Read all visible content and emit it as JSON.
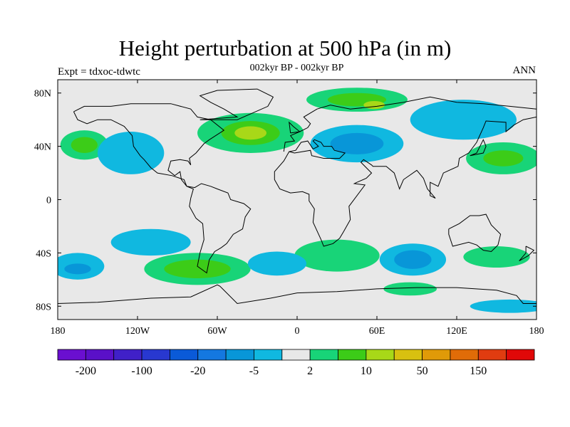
{
  "chart_data": {
    "type": "heatmap",
    "subtype": "filled-contour-map",
    "title": "Height perturbation at 500 hPa (in m)",
    "subtitle": "002kyr BP - 002kyr BP",
    "left_label": "Expt = tdxoc-tdwtc",
    "right_label": "ANN",
    "xlim": [
      -180,
      180
    ],
    "ylim": [
      -90,
      90
    ],
    "x_ticks": [
      {
        "value": -180,
        "label": "180"
      },
      {
        "value": -120,
        "label": "120W"
      },
      {
        "value": -60,
        "label": "60W"
      },
      {
        "value": 0,
        "label": "0"
      },
      {
        "value": 60,
        "label": "60E"
      },
      {
        "value": 120,
        "label": "120E"
      },
      {
        "value": 180,
        "label": "180"
      }
    ],
    "y_ticks": [
      {
        "value": 80,
        "label": "80N"
      },
      {
        "value": 40,
        "label": "40N"
      },
      {
        "value": 0,
        "label": "0"
      },
      {
        "value": -40,
        "label": "40S"
      },
      {
        "value": -80,
        "label": "80S"
      }
    ],
    "colorbar": {
      "colors": [
        "#6a0fd0",
        "#5a10c8",
        "#4020c8",
        "#2838d0",
        "#0a5ad8",
        "#1478e0",
        "#0896d8",
        "#10b8e0",
        "#e8e8e8",
        "#18d478",
        "#3ccc18",
        "#a8d818",
        "#d8c010",
        "#e09a08",
        "#e06c08",
        "#e03c10",
        "#e00808"
      ],
      "tick_labels": [
        "-200",
        "-100",
        "-20",
        "-5",
        "2",
        "10",
        "50",
        "150"
      ],
      "tick_boundaries": [
        1,
        3,
        5,
        7,
        9,
        11,
        13,
        15
      ]
    },
    "anomalies": [
      {
        "lon": 45,
        "lat": 75,
        "level": "5 to 10",
        "rx": 38,
        "ry": 9
      },
      {
        "lon": 45,
        "lat": 75,
        "level": "10 to 20",
        "rx": 22,
        "ry": 5
      },
      {
        "lon": 58,
        "lat": 71,
        "level": "20 to 50",
        "rx": 8,
        "ry": 3
      },
      {
        "lon": -35,
        "lat": 50,
        "level": "5 to 10",
        "rx": 40,
        "ry": 15
      },
      {
        "lon": -35,
        "lat": 50,
        "level": "10 to 20",
        "rx": 22,
        "ry": 9
      },
      {
        "lon": -35,
        "lat": 50,
        "level": "20 to 50",
        "rx": 12,
        "ry": 5
      },
      {
        "lon": -160,
        "lat": 41,
        "level": "5 to 10",
        "rx": 18,
        "ry": 11
      },
      {
        "lon": -160,
        "lat": 41,
        "level": "10 to 20",
        "rx": 10,
        "ry": 6
      },
      {
        "lon": 155,
        "lat": 31,
        "level": "5 to 10",
        "rx": 28,
        "ry": 12
      },
      {
        "lon": 155,
        "lat": 31,
        "level": "10 to 20",
        "rx": 15,
        "ry": 6
      },
      {
        "lon": -75,
        "lat": -52,
        "level": "5 to 10",
        "rx": 40,
        "ry": 12
      },
      {
        "lon": -75,
        "lat": -52,
        "level": "10 to 20",
        "rx": 25,
        "ry": 7
      },
      {
        "lon": 30,
        "lat": -42,
        "level": "5 to 10",
        "rx": 32,
        "ry": 12
      },
      {
        "lon": 150,
        "lat": -43,
        "level": "5 to 10",
        "rx": 25,
        "ry": 8
      },
      {
        "lon": 85,
        "lat": -67,
        "level": "5 to 10",
        "rx": 20,
        "ry": 5
      },
      {
        "lon": 45,
        "lat": 42,
        "level": "-10 to -5",
        "rx": 35,
        "ry": 14
      },
      {
        "lon": 45,
        "lat": 42,
        "level": "-20 to -10",
        "rx": 20,
        "ry": 8
      },
      {
        "lon": -125,
        "lat": 35,
        "level": "-10 to -5",
        "rx": 25,
        "ry": 16
      },
      {
        "lon": -110,
        "lat": -32,
        "level": "-10 to -5",
        "rx": 30,
        "ry": 10
      },
      {
        "lon": -165,
        "lat": -50,
        "level": "-10 to -5",
        "rx": 20,
        "ry": 10
      },
      {
        "lon": -165,
        "lat": -52,
        "level": "-20 to -10",
        "rx": 10,
        "ry": 4
      },
      {
        "lon": -15,
        "lat": -48,
        "level": "-10 to -5",
        "rx": 22,
        "ry": 9
      },
      {
        "lon": 87,
        "lat": -45,
        "level": "-10 to -5",
        "rx": 25,
        "ry": 12
      },
      {
        "lon": 87,
        "lat": -45,
        "level": "-20 to -10",
        "rx": 14,
        "ry": 7
      },
      {
        "lon": 125,
        "lat": 60,
        "level": "-10 to -5",
        "rx": 40,
        "ry": 15
      },
      {
        "lon": 160,
        "lat": -80,
        "level": "-10 to -5",
        "rx": 30,
        "ry": 5
      }
    ]
  }
}
